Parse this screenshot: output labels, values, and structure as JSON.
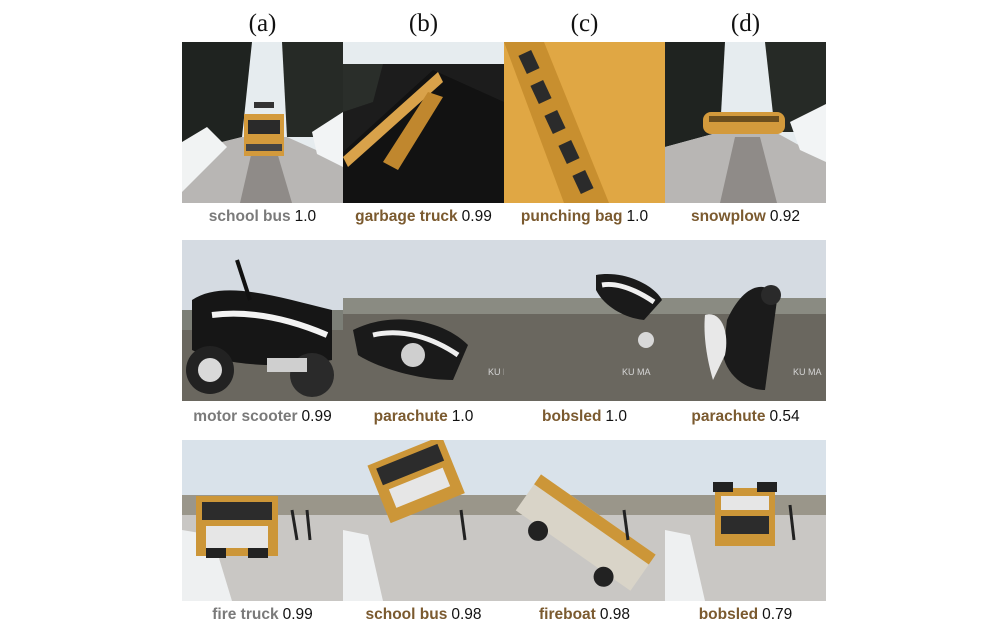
{
  "columns": [
    "(a)",
    "(b)",
    "(c)",
    "(d)"
  ],
  "colors": {
    "label_gray": "#7a7a7a",
    "label_brown": "#7b5a2f",
    "bus_yellow": "#e0a744",
    "sky": "#d9e4ec",
    "road": "#a7a3a0"
  },
  "rows": [
    {
      "scene": "school-bus",
      "cells": [
        {
          "label": "school bus",
          "score": "1.0",
          "tone": "gray"
        },
        {
          "label": "garbage truck",
          "score": "0.99",
          "tone": "brown"
        },
        {
          "label": "punching bag",
          "score": "1.0",
          "tone": "brown"
        },
        {
          "label": "snowplow",
          "score": "0.92",
          "tone": "brown"
        }
      ]
    },
    {
      "scene": "motor-scooter",
      "cells": [
        {
          "label": "motor scooter",
          "score": "0.99",
          "tone": "gray"
        },
        {
          "label": "parachute",
          "score": "1.0",
          "tone": "brown"
        },
        {
          "label": "bobsled",
          "score": "1.0",
          "tone": "brown"
        },
        {
          "label": "parachute",
          "score": "0.54",
          "tone": "brown"
        }
      ]
    },
    {
      "scene": "fire-truck",
      "cells": [
        {
          "label": "fire truck",
          "score": "0.99",
          "tone": "gray"
        },
        {
          "label": "school bus",
          "score": "0.98",
          "tone": "brown"
        },
        {
          "label": "fireboat",
          "score": "0.98",
          "tone": "brown"
        },
        {
          "label": "bobsled",
          "score": "0.79",
          "tone": "brown"
        }
      ]
    }
  ],
  "watermark": "KU MA"
}
